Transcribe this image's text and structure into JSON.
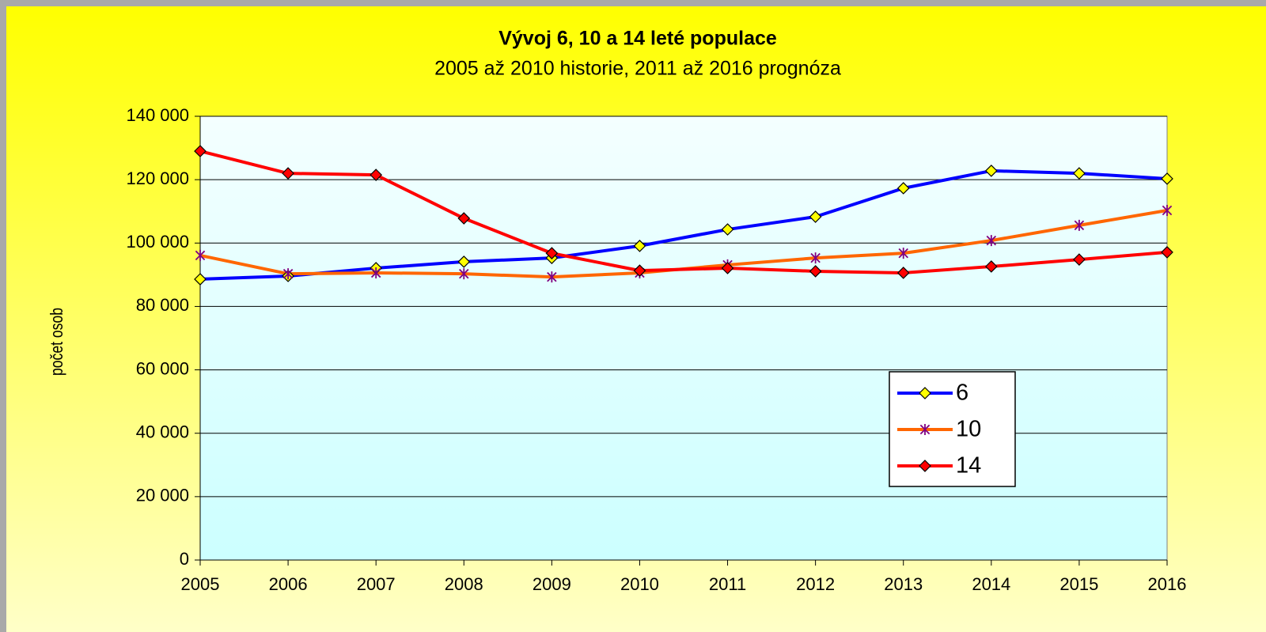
{
  "chart_data": {
    "type": "line",
    "title": "Vývoj 6, 10 a 14 leté populace",
    "subtitle": "2005 až 2010 historie, 2011 až 2016 prognóza",
    "y_label": "počet osob",
    "categories": [
      "2005",
      "2006",
      "2007",
      "2008",
      "2009",
      "2010",
      "2011",
      "2012",
      "2013",
      "2014",
      "2015",
      "2016"
    ],
    "series": [
      {
        "name": "6",
        "color": "#0000ff",
        "marker": "diamond",
        "marker_color": "#ffff00",
        "values": [
          88600,
          89600,
          92100,
          94100,
          95300,
          99100,
          104300,
          108300,
          117300,
          122800,
          122000,
          120300
        ]
      },
      {
        "name": "10",
        "color": "#ff6600",
        "marker": "asterisk",
        "marker_color": "#800080",
        "values": [
          96100,
          90300,
          90600,
          90300,
          89300,
          90600,
          93100,
          95300,
          96800,
          100800,
          105600,
          110300
        ]
      },
      {
        "name": "14",
        "color": "#ff0000",
        "marker": "diamond",
        "marker_color": "#ff0000",
        "values": [
          129000,
          122000,
          121500,
          107800,
          96800,
          91300,
          92100,
          91100,
          90600,
          92600,
          94800,
          97100
        ]
      }
    ],
    "ylim": [
      0,
      140000
    ],
    "yticks": [
      0,
      {
        "value": 20000,
        "label": "20 000"
      },
      {
        "value": 40000,
        "label": "40 000"
      },
      {
        "value": 60000,
        "label": "60 000"
      },
      {
        "value": 80000,
        "label": "80 000"
      },
      {
        "value": 100000,
        "label": "100 000"
      },
      {
        "value": 120000,
        "label": "120 000"
      },
      {
        "value": 140000,
        "label": "140 000"
      }
    ],
    "grid": true,
    "legend": "lower right"
  }
}
